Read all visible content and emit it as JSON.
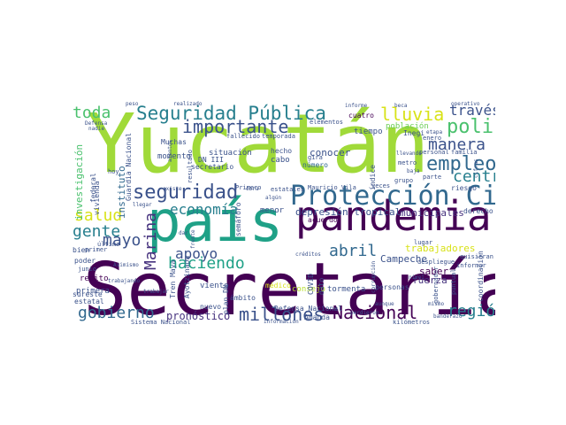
{
  "words": [
    {
      "text": "Yucatán",
      "color": "#a0da39"
    },
    {
      "text": "Secretaría",
      "color": "#440154"
    },
    {
      "text": "país",
      "color": "#1fa187"
    },
    {
      "text": "pandemia",
      "color": "#440154"
    },
    {
      "text": "Protección Civil",
      "color": "#31688e"
    },
    {
      "text": "Seguridad Pública",
      "color": "#277f8e"
    },
    {
      "text": "lluvia",
      "color": "#d8e219"
    },
    {
      "text": "policía",
      "color": "#4ac16d"
    },
    {
      "text": "empleo",
      "color": "#31688e"
    },
    {
      "text": "seguridad",
      "color": "#3b528b"
    },
    {
      "text": "importante",
      "color": "#3b528b"
    },
    {
      "text": "toda",
      "color": "#4ac16d"
    },
    {
      "text": "través",
      "color": "#3b528b"
    },
    {
      "text": "manera",
      "color": "#3b528b"
    },
    {
      "text": "centro",
      "color": "#277f8e"
    },
    {
      "text": "salud",
      "color": "#d8e219"
    },
    {
      "text": "gente",
      "color": "#277f8e"
    },
    {
      "text": "mayo",
      "color": "#3b528b"
    },
    {
      "text": "Marina",
      "color": "#46327e"
    },
    {
      "text": "economía",
      "color": "#277f8e"
    },
    {
      "text": "apoyo",
      "color": "#3b528b"
    },
    {
      "text": "abril",
      "color": "#31688e"
    },
    {
      "text": "haciendo",
      "color": "#1fa187"
    },
    {
      "text": "gobierno",
      "color": "#31688e"
    },
    {
      "text": "millones",
      "color": "#3b528b"
    },
    {
      "text": "Nacional",
      "color": "#440154"
    },
    {
      "text": "región",
      "color": "#277f8e"
    },
    {
      "text": "pronóstico",
      "color": "#46327e"
    },
    {
      "text": "depresión tropical",
      "color": "#3b528b"
    },
    {
      "text": "municipales",
      "color": "#46327e"
    },
    {
      "text": "trabajadores",
      "color": "#d8e219"
    },
    {
      "text": "conocer",
      "color": "#3b528b"
    },
    {
      "text": "Campeche",
      "color": "#3b528b"
    },
    {
      "text": "fuerza",
      "color": "#46327e"
    },
    {
      "text": "saber",
      "color": "#440154"
    },
    {
      "text": "investigación",
      "color": "#4ac16d"
    },
    {
      "text": "instituto",
      "color": "#31688e"
    },
    {
      "text": "situación",
      "color": "#3b528b"
    },
    {
      "text": "momento",
      "color": "#3b528b"
    },
    {
      "text": "Muchas",
      "color": "#3b528b"
    },
    {
      "text": "tiempo",
      "color": "#3b528b"
    },
    {
      "text": "población",
      "color": "#6ece58"
    },
    {
      "text": "Inegi",
      "color": "#3b528b"
    },
    {
      "text": "cuatro",
      "color": "#440154"
    },
    {
      "text": "cabo",
      "color": "#3b528b"
    },
    {
      "text": "número",
      "color": "#31688e"
    },
    {
      "text": "menor",
      "color": "#3b528b"
    },
    {
      "text": "semáforo",
      "color": "#3b528b"
    },
    {
      "text": "tormenta",
      "color": "#3b528b"
    },
    {
      "text": "repito",
      "color": "#440154"
    },
    {
      "text": "primera",
      "color": "#3b528b"
    },
    {
      "text": "poder",
      "color": "#3b528b"
    },
    {
      "text": "junio",
      "color": "#3b528b"
    },
    {
      "text": "sureste",
      "color": "#3b528b"
    },
    {
      "text": "estatal",
      "color": "#3b528b"
    },
    {
      "text": "bien",
      "color": "#3b528b"
    },
    {
      "text": "viento",
      "color": "#3b528b"
    },
    {
      "text": "Defensa Nacional",
      "color": "#3b528b"
    },
    {
      "text": "Amanda",
      "color": "#3b528b"
    },
    {
      "text": "acuerdo",
      "color": "#440154"
    },
    {
      "text": "consejo",
      "color": "#b5de2b"
    },
    {
      "text": "médico",
      "color": "#d8e219"
    },
    {
      "text": "COVID",
      "color": "#3b528b"
    },
    {
      "text": "dato",
      "color": "#3b528b"
    },
    {
      "text": "nuevo",
      "color": "#3b528b"
    },
    {
      "text": "ámbito",
      "color": "#3b528b"
    },
    {
      "text": "derecho",
      "color": "#3b528b"
    },
    {
      "text": "riesgo",
      "color": "#3b528b"
    },
    {
      "text": "personas",
      "color": "#3b528b"
    },
    {
      "text": "gobernador",
      "color": "#3b528b"
    },
    {
      "text": "coordinación",
      "color": "#3b528b"
    },
    {
      "text": "puntual",
      "color": "#3b528b"
    },
    {
      "text": "informar",
      "color": "#3b528b"
    },
    {
      "text": "quisieran",
      "color": "#3b528b"
    },
    {
      "text": "despliegue",
      "color": "#3b528b"
    },
    {
      "text": "lugar",
      "color": "#3b528b"
    },
    {
      "text": "federal",
      "color": "#3b528b"
    },
    {
      "text": "vivienda",
      "color": "#3b528b"
    },
    {
      "text": "último",
      "color": "#3b528b"
    },
    {
      "text": "Guardia Nacional",
      "color": "#3b528b"
    },
    {
      "text": "Tren Maya",
      "color": "#3b528b"
    },
    {
      "text": "DN III",
      "color": "#3b528b"
    },
    {
      "text": "Ayotzinapa",
      "color": "#3b528b"
    },
    {
      "text": "plan DN",
      "color": "#3b528b"
    },
    {
      "text": "hecho",
      "color": "#3b528b"
    },
    {
      "text": "secretario",
      "color": "#3b528b"
    },
    {
      "text": "resultado",
      "color": "#3b528b"
    },
    {
      "text": "Primero",
      "color": "#3b528b"
    },
    {
      "text": "estatales",
      "color": "#3b528b"
    },
    {
      "text": "Mauricio Vila",
      "color": "#3b528b"
    },
    {
      "text": "veces",
      "color": "#3b528b"
    },
    {
      "text": "índice",
      "color": "#3b528b"
    },
    {
      "text": "gira",
      "color": "#3b528b"
    },
    {
      "text": "elementos",
      "color": "#3b528b"
    },
    {
      "text": "fallecido",
      "color": "#3b528b"
    },
    {
      "text": "temporada",
      "color": "#3b528b"
    },
    {
      "text": "enero",
      "color": "#3b528b"
    },
    {
      "text": "etapa",
      "color": "#3b528b"
    },
    {
      "text": "familia",
      "color": "#3b528b"
    },
    {
      "text": "personal",
      "color": "#3b528b"
    },
    {
      "text": "metro",
      "color": "#3b528b"
    },
    {
      "text": "grupo",
      "color": "#3b528b"
    },
    {
      "text": "parte",
      "color": "#3b528b"
    },
    {
      "text": "kilómetros",
      "color": "#3b528b"
    },
    {
      "text": "Sistema Nacional",
      "color": "#3b528b"
    },
    {
      "text": "peso",
      "color": "#3b528b"
    },
    {
      "text": "realizado",
      "color": "#3b528b"
    },
    {
      "text": "informe",
      "color": "#3b528b"
    },
    {
      "text": "beca",
      "color": "#3b528b"
    },
    {
      "text": "operativo",
      "color": "#3b528b"
    },
    {
      "text": "Defensa",
      "color": "#3b528b"
    },
    {
      "text": "nadie",
      "color": "#3b528b"
    },
    {
      "text": "atentos",
      "color": "#3b528b"
    },
    {
      "text": "hoy",
      "color": "#3b528b"
    },
    {
      "text": "primer",
      "color": "#3b528b"
    },
    {
      "text": "existe",
      "color": "#3b528b"
    },
    {
      "text": "trabajar",
      "color": "#3b528b"
    },
    {
      "text": "nivel",
      "color": "#3b528b"
    },
    {
      "text": "aunque",
      "color": "#3b528b"
    },
    {
      "text": "mismo",
      "color": "#3b528b"
    },
    {
      "text": "perdieron",
      "color": "#3b528b"
    },
    {
      "text": "información",
      "color": "#3b528b"
    },
    {
      "text": "créditos",
      "color": "#3b528b"
    },
    {
      "text": "frente",
      "color": "#3b528b"
    },
    {
      "text": "algún",
      "color": "#3b528b"
    },
    {
      "text": "Asimismo",
      "color": "#3b528b"
    },
    {
      "text": "trabajando",
      "color": "#3b528b"
    },
    {
      "text": "dar",
      "color": "#3b528b"
    },
    {
      "text": "llegar",
      "color": "#3b528b"
    },
    {
      "text": "obra",
      "color": "#3b528b"
    },
    {
      "text": "corrupción",
      "color": "#3b528b"
    },
    {
      "text": "llevando",
      "color": "#3b528b"
    },
    {
      "text": "cifras",
      "color": "#3b528b"
    },
    {
      "text": "baja",
      "color": "#3b528b"
    },
    {
      "text": "banderazo",
      "color": "#3b528b"
    }
  ]
}
